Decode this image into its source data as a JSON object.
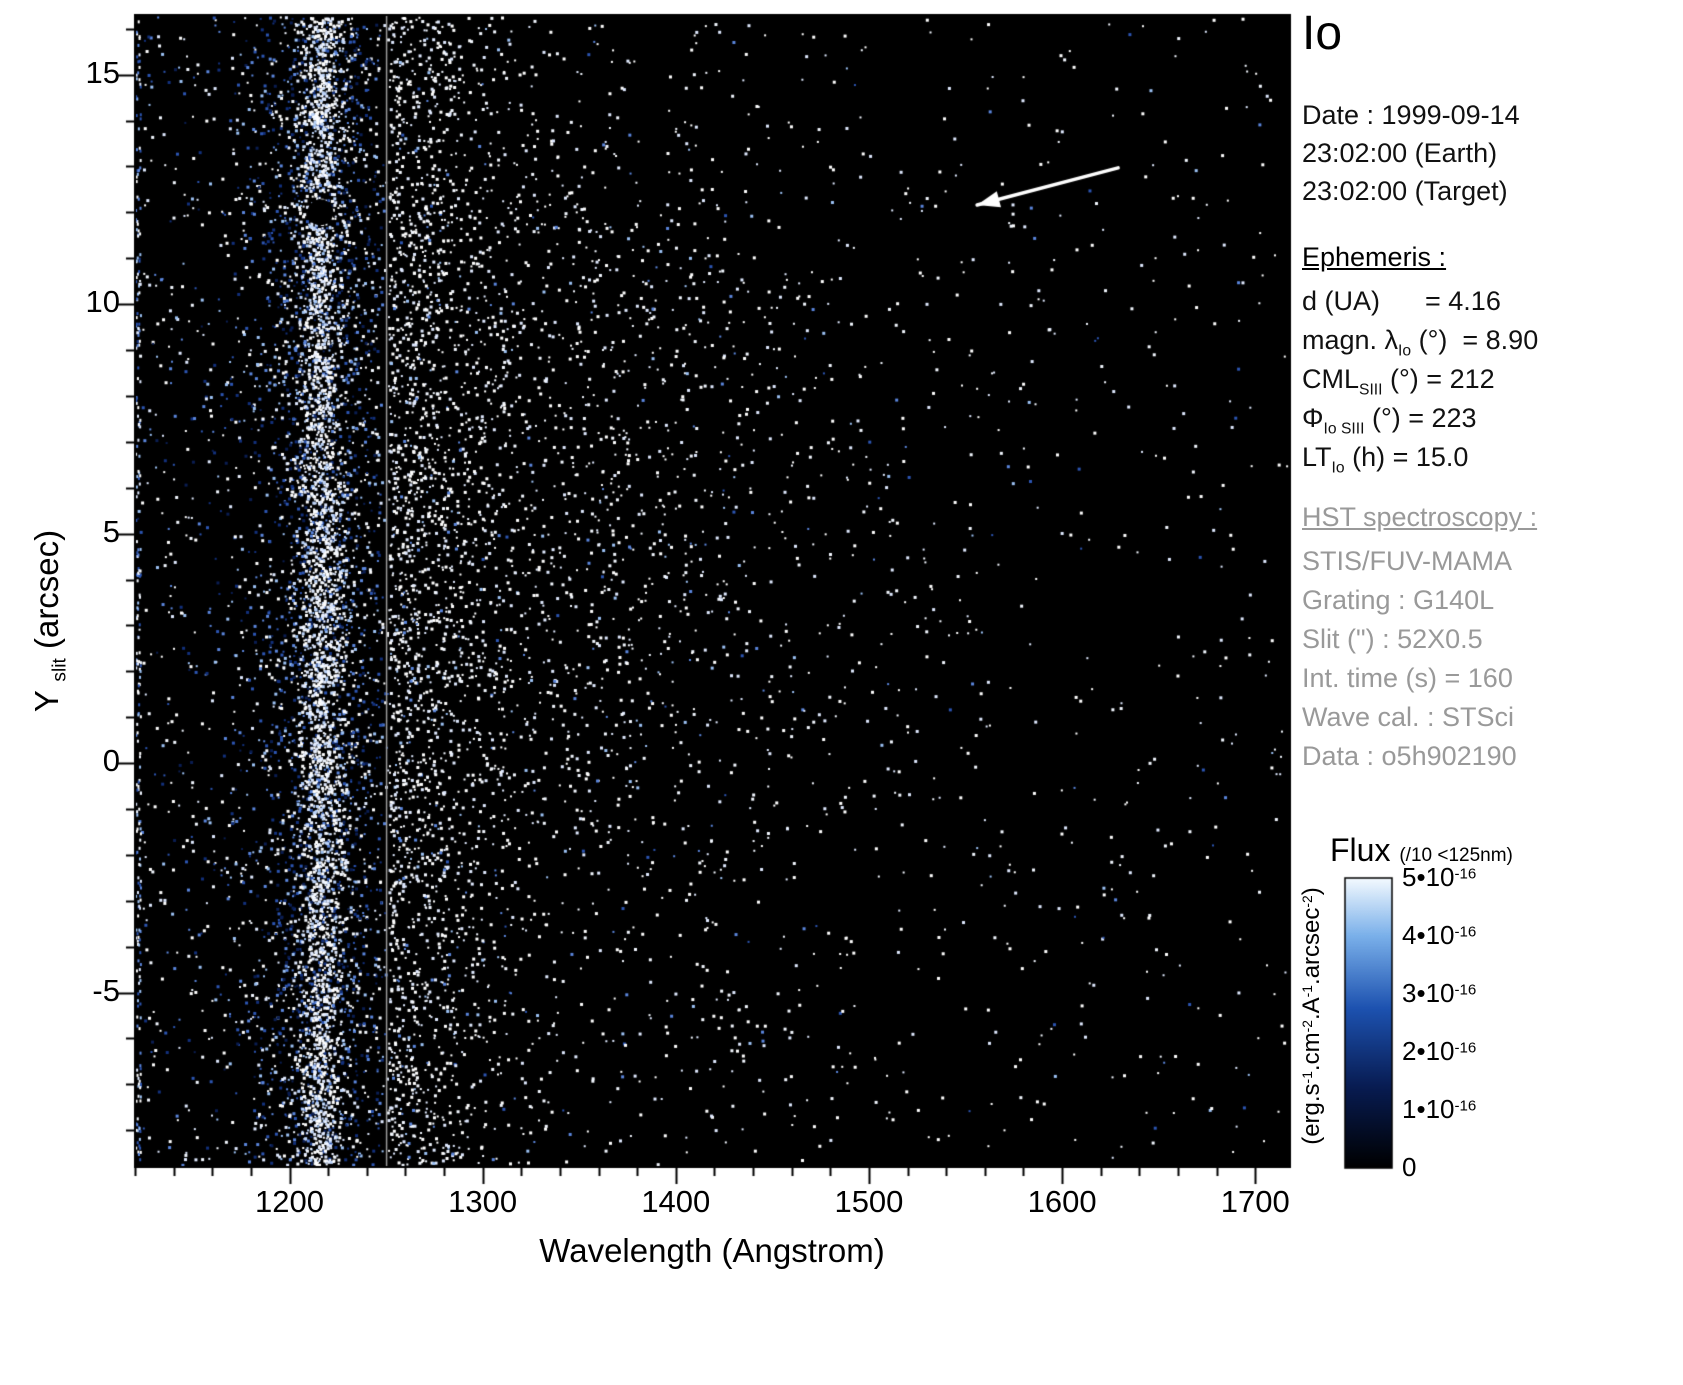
{
  "title": "Io",
  "info": {
    "date_lines": [
      "Date : 1999-09-14",
      "23:02:00 (Earth)",
      "23:02:00 (Target)"
    ],
    "ephemeris_header": "Ephemeris :",
    "ephemeris_lines": [
      {
        "parts": [
          {
            "text": "d (UA)      = 4.16"
          }
        ]
      },
      {
        "parts": [
          {
            "text": "magn. λ"
          },
          {
            "text": "Io",
            "sub": true
          },
          {
            "text": " (°)  = 8.90"
          }
        ]
      },
      {
        "parts": [
          {
            "text": "CML"
          },
          {
            "text": "SIII",
            "sub": true
          },
          {
            "text": " (°) = 212"
          }
        ]
      },
      {
        "parts": [
          {
            "text": "Φ"
          },
          {
            "text": "Io SIII",
            "sub": true
          },
          {
            "text": " (°) = 223"
          }
        ]
      },
      {
        "parts": [
          {
            "text": "LT"
          },
          {
            "text": "Io",
            "sub": true
          },
          {
            "text": " (h) = 15.0"
          }
        ]
      }
    ],
    "hst_header": "HST spectroscopy :",
    "hst_lines": [
      "STIS/FUV-MAMA",
      "Grating : G140L",
      "Slit (\") : 52X0.5",
      "Int. time (s) = 160",
      "Wave cal. : STSci",
      "Data : o5h902190"
    ]
  },
  "colorbar": {
    "label": "Flux",
    "label_note": "(/10 <125nm)",
    "unit_parts": [
      {
        "text": "(erg.s"
      },
      {
        "text": "-1",
        "sup": true
      },
      {
        "text": ".cm"
      },
      {
        "text": "-2",
        "sup": true
      },
      {
        "text": ".A"
      },
      {
        "text": "-1",
        "sup": true
      },
      {
        "text": ".arcsec"
      },
      {
        "text": "-2",
        "sup": true
      },
      {
        "text": ")"
      }
    ],
    "ticks": [
      {
        "value": 5,
        "parts": [
          {
            "text": "5•10"
          },
          {
            "text": "-16",
            "sup": true
          }
        ]
      },
      {
        "value": 4,
        "parts": [
          {
            "text": "4•10"
          },
          {
            "text": "-16",
            "sup": true
          }
        ]
      },
      {
        "value": 3,
        "parts": [
          {
            "text": "3•10"
          },
          {
            "text": "-16",
            "sup": true
          }
        ]
      },
      {
        "value": 2,
        "parts": [
          {
            "text": "2•10"
          },
          {
            "text": "-16",
            "sup": true
          }
        ]
      },
      {
        "value": 1,
        "parts": [
          {
            "text": "1•10"
          },
          {
            "text": "-16",
            "sup": true
          }
        ]
      },
      {
        "value": 0,
        "parts": [
          {
            "text": "0"
          }
        ]
      }
    ],
    "gradient": [
      [
        "0",
        "#000000"
      ],
      [
        "0.28",
        "#081c52"
      ],
      [
        "0.55",
        "#1d52b0"
      ],
      [
        "0.8",
        "#7ab0ea"
      ],
      [
        "1",
        "#f4faff"
      ]
    ]
  },
  "chart_data": {
    "type": "scatter",
    "title": "Io",
    "subtitle": "HST STIS/FUV-MAMA 2D spectral image: photon-count dot raster of Io, bright Lyman-alpha airglow band near 1216 Angstrom, flux divided by 10 below 125 nm (divider line at 1250 Angstrom)",
    "xlabel": "Wavelength (Angstrom)",
    "ylabel_parts": [
      {
        "text": "Y "
      },
      {
        "text": "slit",
        "sub": true
      },
      {
        "text": " (arcsec)"
      }
    ],
    "xlim": [
      1120,
      1718
    ],
    "ylim": [
      -8.8,
      16.3
    ],
    "x_ticks": [
      1200,
      1300,
      1400,
      1500,
      1600,
      1700
    ],
    "y_ticks": [
      -5,
      0,
      5,
      10,
      15
    ],
    "x_minor_step": 20,
    "y_minor_step": 1,
    "flux_range": [
      0,
      5e-16
    ],
    "flux_units": "erg.s-1.cm-2.A-1.arcsec-2",
    "legend_position": "right colorbar",
    "grid": false,
    "noise": {
      "seed": 19990914,
      "divider": 1250,
      "background": {
        "count": 5200
      },
      "lya_band": {
        "center": 1216,
        "core_sigma": 6,
        "wing_sigma": 20,
        "core_count": 3000,
        "wing_count": 3300
      },
      "post_divider": {
        "count": 1700,
        "sigma": 26
      },
      "mid_cloud": {
        "x_center": 1335,
        "x_sigma": 75,
        "y_center": 5.5,
        "y_sigma": 5.5,
        "count": 1500
      },
      "edge_column": {
        "count": 260
      }
    },
    "annotations": {
      "arrow": {
        "from": [
          1629,
          12.97
        ],
        "to": [
          1556,
          12.16
        ],
        "color": "#ffffff"
      },
      "occultation_disk": {
        "x_wavelength": 1216,
        "y_arcsec": 12.0,
        "radius_px": 13,
        "color": "#000000"
      },
      "divider_line": {
        "wavelength": 1250,
        "color": "#9a9a9a"
      }
    }
  }
}
